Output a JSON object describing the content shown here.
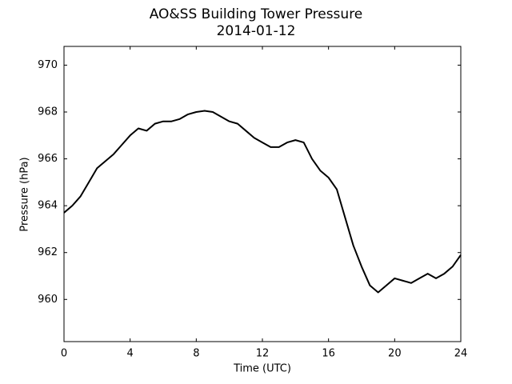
{
  "chart_data": {
    "type": "line",
    "title": "AO&SS Building Tower Pressure",
    "subtitle": "2014-01-12",
    "x_label": "Time (UTC)",
    "y_label": "Pressure (hPa)",
    "x": [
      0,
      0.5,
      1,
      1.5,
      2,
      2.5,
      3,
      3.5,
      4,
      4.5,
      5,
      5.5,
      6,
      6.5,
      7,
      7.5,
      8,
      8.5,
      9,
      9.5,
      10,
      10.5,
      11,
      11.5,
      12,
      12.5,
      13,
      13.5,
      14,
      14.5,
      15,
      15.5,
      16,
      16.5,
      17,
      17.5,
      18,
      18.5,
      19,
      19.5,
      20,
      20.5,
      21,
      21.5,
      22,
      22.5,
      23,
      23.5,
      24
    ],
    "series": [
      {
        "name": "Pressure",
        "color": "#000000",
        "values": [
          963.7,
          964.0,
          964.4,
          965.0,
          965.6,
          965.9,
          966.2,
          966.6,
          967.0,
          967.3,
          967.2,
          967.5,
          967.6,
          967.6,
          967.7,
          967.9,
          968.0,
          968.05,
          968.0,
          967.8,
          967.6,
          967.5,
          967.2,
          966.9,
          966.7,
          966.5,
          966.5,
          966.7,
          966.8,
          966.7,
          966.0,
          965.5,
          965.2,
          964.7,
          963.5,
          962.3,
          961.4,
          960.6,
          960.3,
          960.6,
          960.9,
          960.8,
          960.7,
          960.9,
          961.1,
          960.9,
          961.1,
          961.4,
          961.9
        ]
      }
    ],
    "xlim": [
      0,
      24
    ],
    "xticks": [
      0,
      4,
      8,
      12,
      16,
      20,
      24
    ],
    "ylim": [
      958.2,
      970.8
    ],
    "yticks": [
      960,
      962,
      964,
      966,
      968,
      970
    ],
    "grid": false
  }
}
